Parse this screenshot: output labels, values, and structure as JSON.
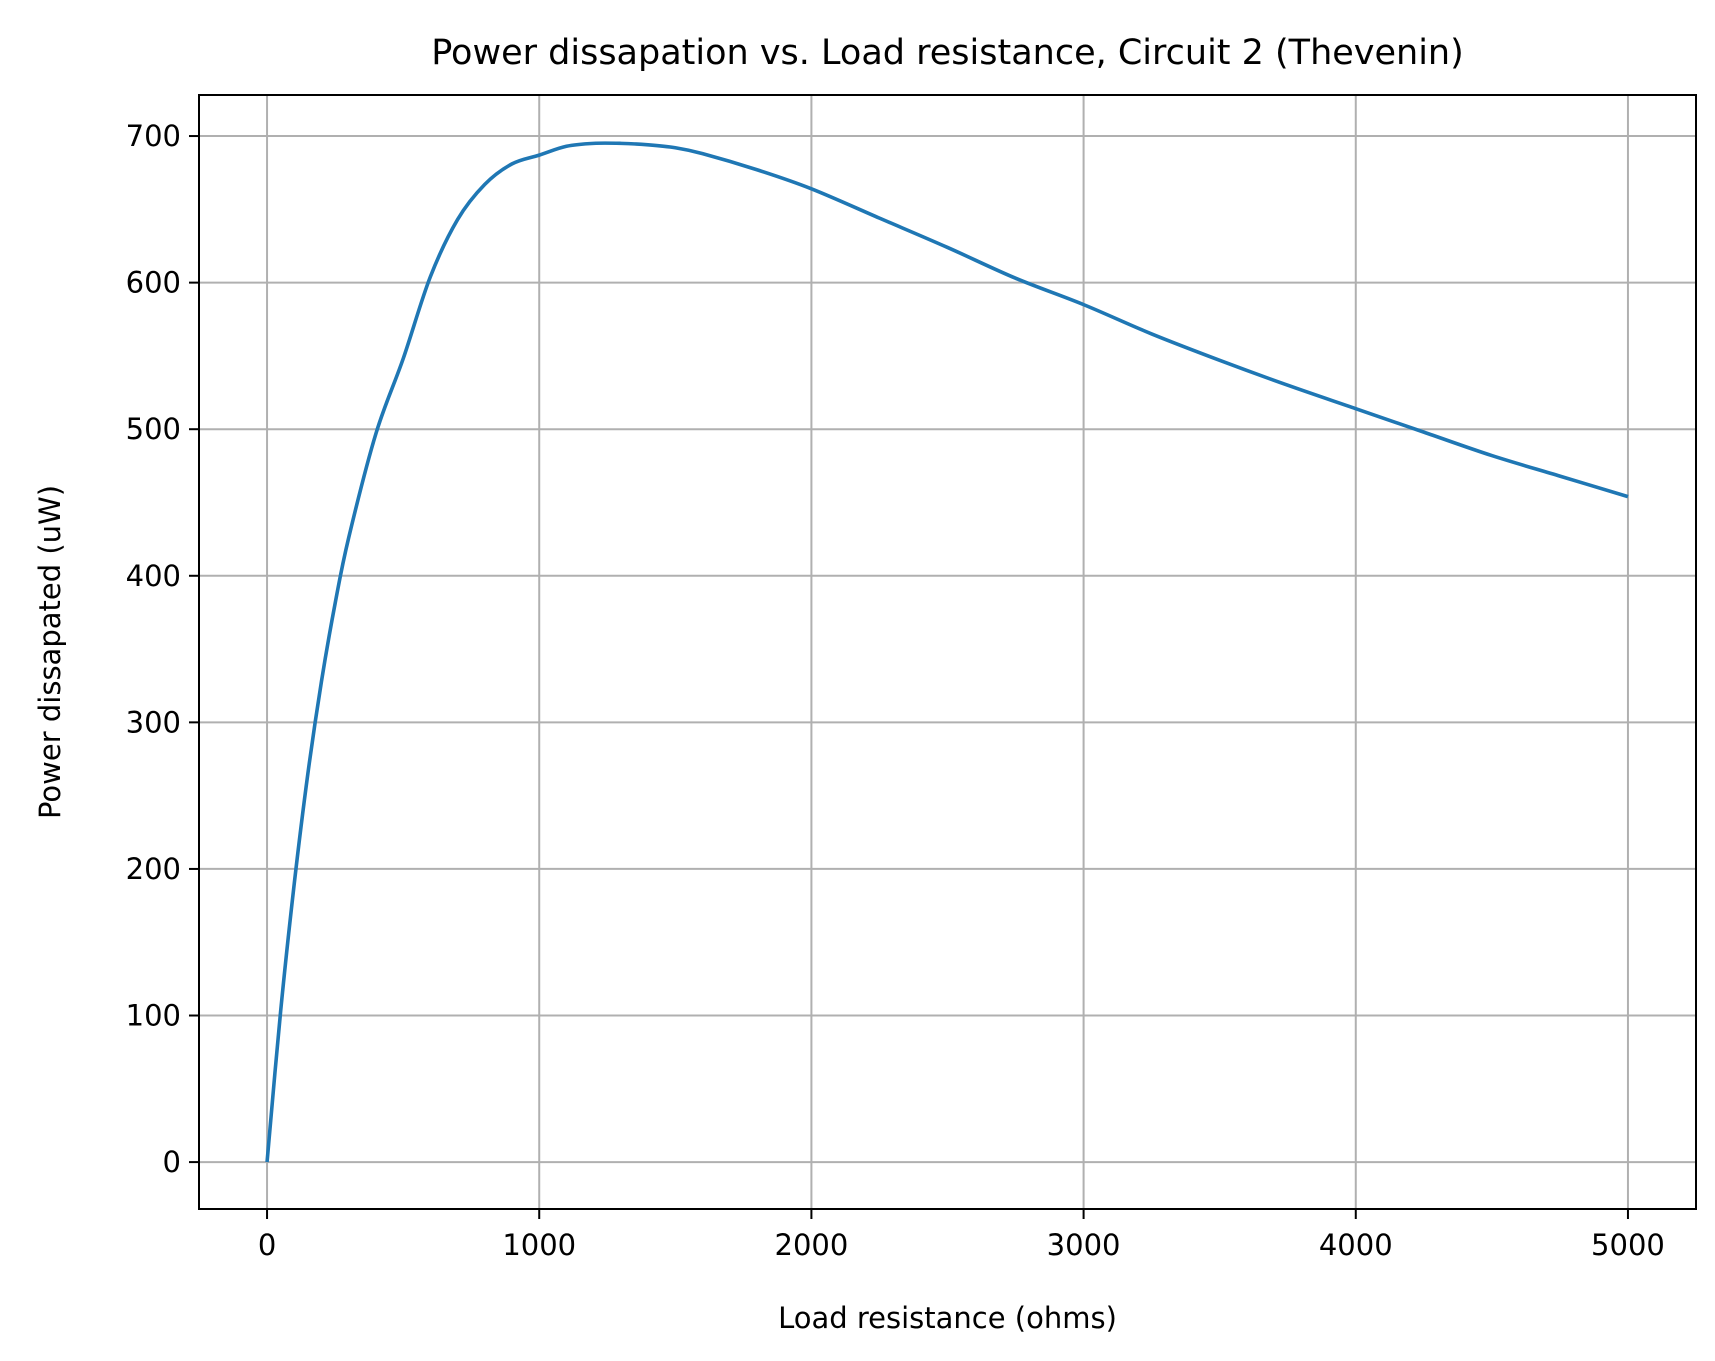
{
  "chart_data": {
    "type": "line",
    "title": "Power dissapation vs. Load resistance, Circuit 2 (Thevenin)",
    "xlabel": "Load resistance (ohms)",
    "ylabel": "Power dissapated (uW)",
    "xlim": [
      -250,
      5250
    ],
    "ylim": [
      -32,
      728
    ],
    "xticks": [
      0,
      1000,
      2000,
      3000,
      4000,
      5000
    ],
    "yticks": [
      0,
      100,
      200,
      300,
      400,
      500,
      600,
      700
    ],
    "grid": true,
    "colors": {
      "line": "#1f77b4",
      "grid": "#b0b0b0",
      "axes": "#000000"
    },
    "series": [
      {
        "x": [
          0,
          50,
          100,
          150,
          200,
          250,
          300,
          400,
          500,
          600,
          700,
          800,
          900,
          1000,
          1100,
          1200,
          1300,
          1400,
          1500,
          1600,
          1800,
          2000,
          2250,
          2500,
          2750,
          3000,
          3250,
          3500,
          3750,
          4000,
          4250,
          4500,
          4750,
          5000
        ],
        "values": [
          0,
          103,
          190,
          265,
          328,
          381,
          426,
          497,
          548,
          604,
          643,
          667,
          681,
          687,
          693,
          695,
          695,
          694,
          692,
          688,
          677,
          664,
          644,
          624,
          603,
          585,
          565,
          547,
          530,
          514,
          498,
          482,
          468,
          454
        ]
      }
    ]
  }
}
